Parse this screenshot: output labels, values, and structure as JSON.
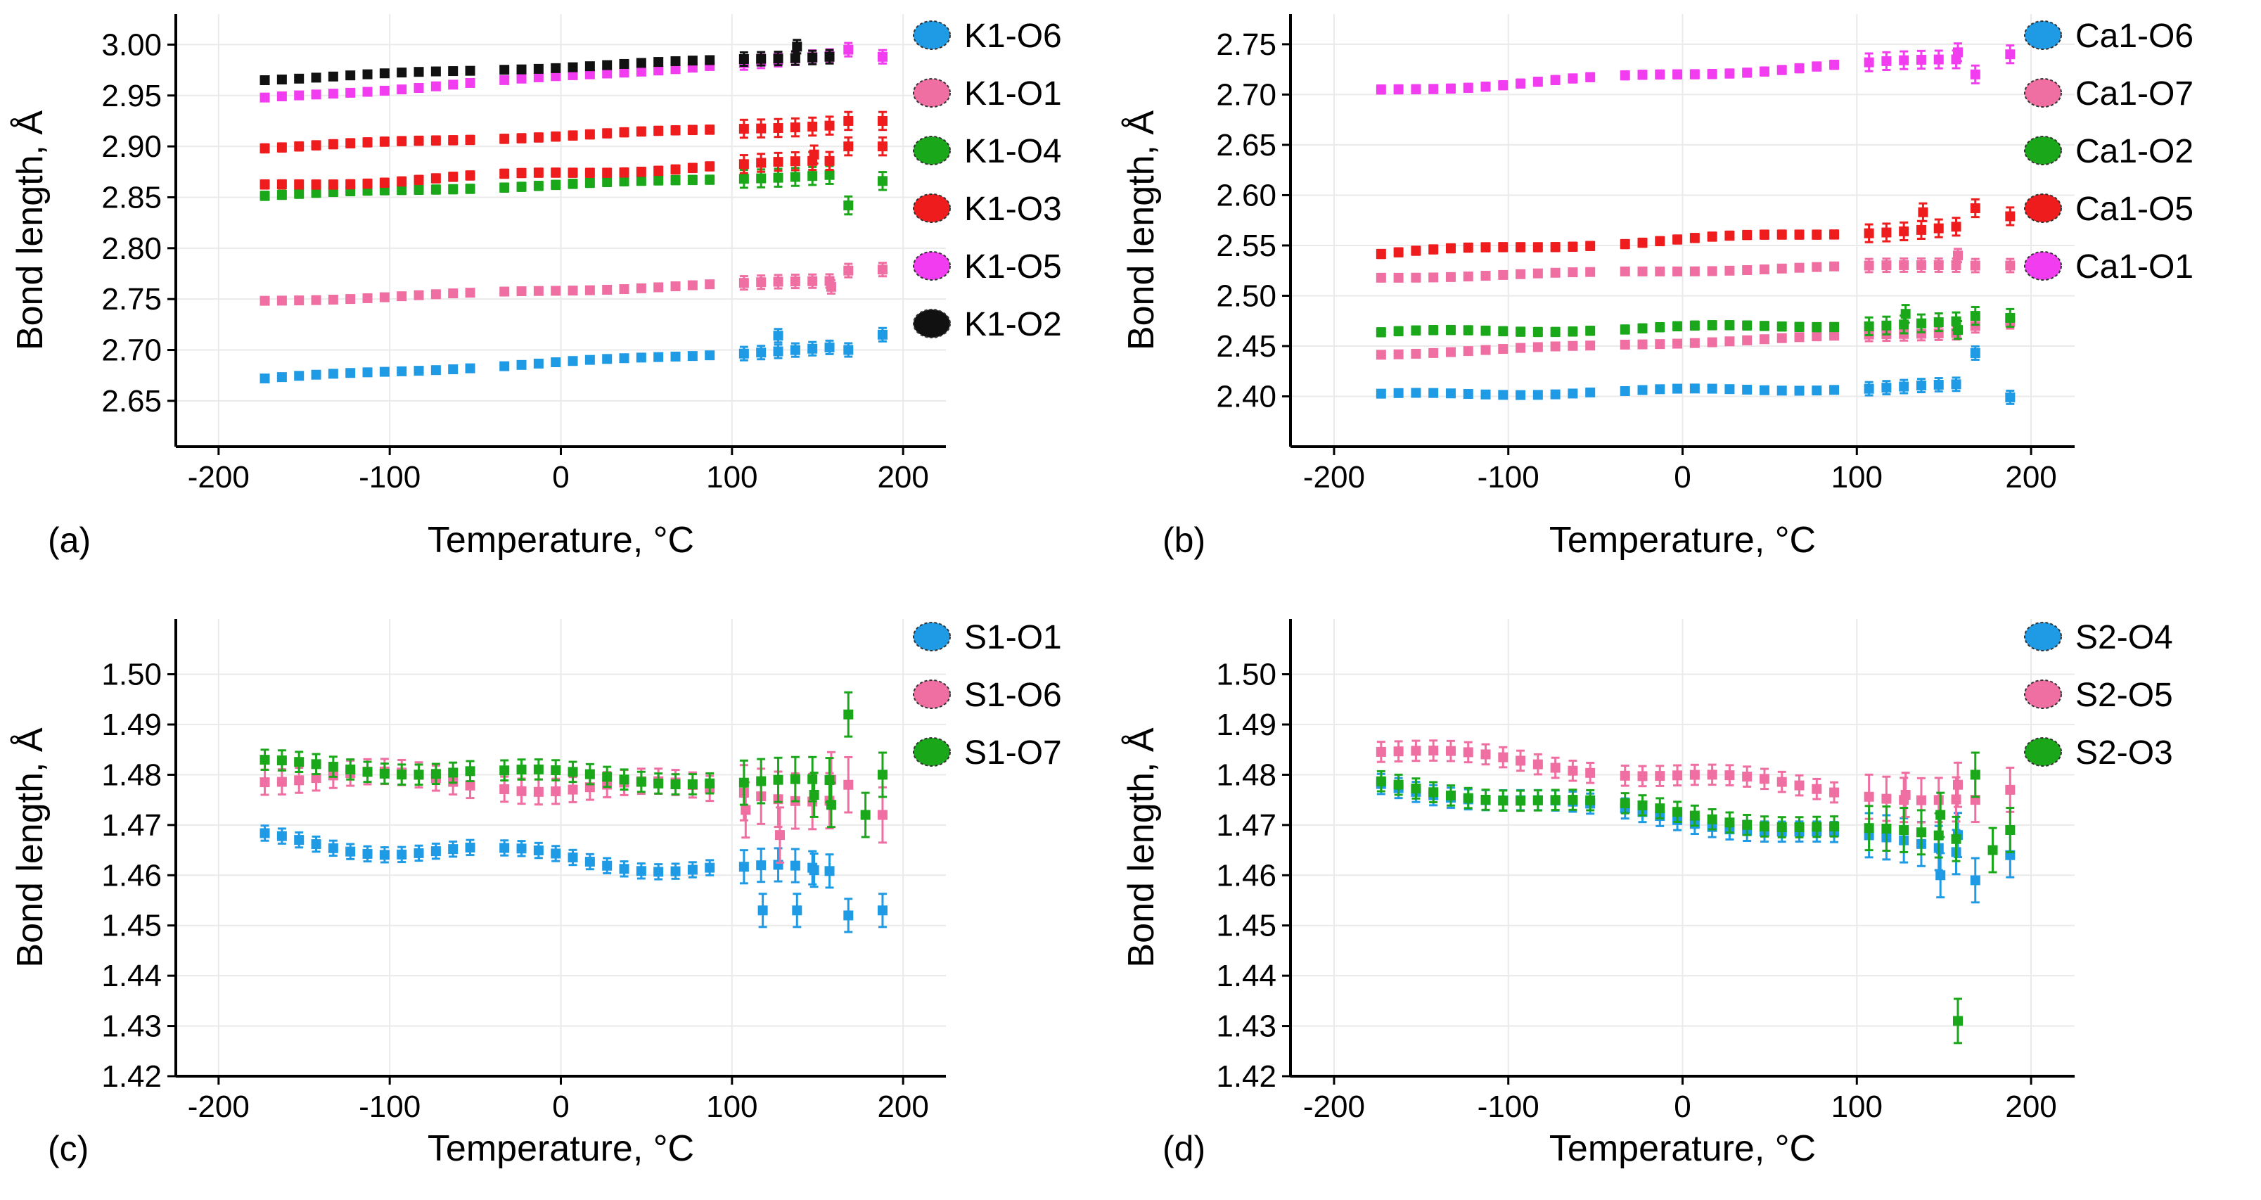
{
  "chart_data": [
    {
      "type": "scatter",
      "panel_label": "(a)",
      "xlabel": "Temperature, °C",
      "ylabel": "Bond length, Å",
      "xlim": [
        -225,
        225
      ],
      "ylim": [
        2.605,
        3.03
      ],
      "xticks": [
        "-200",
        "-100",
        "0",
        "100",
        "200"
      ],
      "xtick_values": [
        -200,
        -100,
        0,
        100,
        200
      ],
      "yticks": [
        "2.65",
        "2.70",
        "2.75",
        "2.80",
        "2.85",
        "2.90",
        "2.95",
        "3.00"
      ],
      "ytick_values": [
        2.65,
        2.7,
        2.75,
        2.8,
        2.85,
        2.9,
        2.95,
        3.0
      ],
      "legend_position": "right",
      "series": [
        {
          "name": "K1-O6",
          "color": "#1f9be6",
          "start": 2.672,
          "end": 2.702,
          "outliers": [
            [
              127,
              2.714
            ],
            [
              168,
              2.7
            ],
            [
              188,
              2.715
            ]
          ],
          "err": 0.003,
          "wiggle": 0.001
        },
        {
          "name": "K1-O1",
          "color": "#ef6fa2",
          "start": 2.748,
          "end": 2.768,
          "outliers": [
            [
              158,
              2.762
            ],
            [
              168,
              2.778
            ],
            [
              188,
              2.779
            ]
          ],
          "err": 0.003,
          "wiggle": 0.001
        },
        {
          "name": "K1-O4",
          "color": "#1aa81a",
          "start": 2.852,
          "end": 2.872,
          "outliers": [
            [
              168,
              2.842
            ],
            [
              188,
              2.866
            ]
          ],
          "err": 0.004,
          "wiggle": 0.001
        },
        {
          "name": "K1-O3",
          "color": "#ee1c1c",
          "start": 2.861,
          "end": 2.885,
          "outliers": [
            [
              148,
              2.892
            ],
            [
              168,
              2.9
            ],
            [
              188,
              2.9
            ]
          ],
          "err": 0.004,
          "wiggle": 0.002
        },
        {
          "name": "K1-O3b",
          "color": "#ee1c1c",
          "legend": false,
          "start": 2.899,
          "end": 2.921,
          "outliers": [
            [
              168,
              2.925
            ],
            [
              188,
              2.925
            ]
          ],
          "err": 0.004,
          "wiggle": 0.001
        },
        {
          "name": "K1-O5",
          "color": "#f23cf0",
          "start": 2.947,
          "end": 2.988,
          "outliers": [
            [
              168,
              2.995
            ],
            [
              188,
              2.988
            ]
          ],
          "err": 0.003,
          "wiggle": 0.001
        },
        {
          "name": "K1-O2",
          "color": "#111111",
          "start": 2.966,
          "end": 2.989,
          "outliers": [
            [
              138,
              2.998
            ]
          ],
          "err": 0.003,
          "wiggle": 0.001
        }
      ]
    },
    {
      "type": "scatter",
      "panel_label": "(b)",
      "xlabel": "Temperature, °C",
      "ylabel": "Bond length, Å",
      "xlim": [
        -225,
        225
      ],
      "ylim": [
        2.35,
        2.78
      ],
      "xticks": [
        "-200",
        "-100",
        "0",
        "100",
        "200"
      ],
      "xtick_values": [
        -200,
        -100,
        0,
        100,
        200
      ],
      "yticks": [
        "2.40",
        "2.45",
        "2.50",
        "2.55",
        "2.60",
        "2.65",
        "2.70",
        "2.75"
      ],
      "ytick_values": [
        2.4,
        2.45,
        2.5,
        2.55,
        2.6,
        2.65,
        2.7,
        2.75
      ],
      "legend_position": "right",
      "series": [
        {
          "name": "Ca1-O6",
          "color": "#1f9be6",
          "start": 2.401,
          "end": 2.41,
          "outliers": [
            [
              168,
              2.443
            ],
            [
              188,
              2.399
            ]
          ],
          "err": 0.003,
          "wiggle": 0.002
        },
        {
          "name": "Ca1-O7",
          "color": "#ef6fa2",
          "start": 2.442,
          "end": 2.464,
          "outliers": [
            [
              168,
              2.47
            ],
            [
              188,
              2.474
            ]
          ],
          "err": 0.003,
          "wiggle": 0.001
        },
        {
          "name": "Ca1-O2",
          "color": "#1aa81a",
          "start": 2.463,
          "end": 2.473,
          "outliers": [
            [
              128,
              2.482
            ],
            [
              158,
              2.466
            ],
            [
              168,
              2.48
            ],
            [
              188,
              2.478
            ]
          ],
          "err": 0.004,
          "wiggle": 0.002
        },
        {
          "name": "Ca1-O7b",
          "color": "#ef6fa2",
          "legend": false,
          "start": 2.518,
          "end": 2.531,
          "outliers": [
            [
              158,
              2.54
            ],
            [
              168,
              2.53
            ],
            [
              188,
              2.53
            ]
          ],
          "err": 0.003,
          "wiggle": 0.001
        },
        {
          "name": "Ca1-O5",
          "color": "#ee1c1c",
          "start": 2.542,
          "end": 2.568,
          "outliers": [
            [
              138,
              2.583
            ],
            [
              168,
              2.587
            ],
            [
              188,
              2.579
            ]
          ],
          "err": 0.004,
          "wiggle": 0.002
        },
        {
          "name": "Ca1-O1",
          "color": "#f23cf0",
          "start": 2.704,
          "end": 2.735,
          "outliers": [
            [
              158,
              2.742
            ],
            [
              168,
              2.72
            ],
            [
              188,
              2.74
            ]
          ],
          "err": 0.004,
          "wiggle": 0.002
        }
      ]
    },
    {
      "type": "scatter",
      "panel_label": "(c)",
      "xlabel": "Temperature, °C",
      "ylabel": "Bond length, Å",
      "xlim": [
        -225,
        225
      ],
      "ylim": [
        1.42,
        1.511
      ],
      "xticks": [
        "-200",
        "-100",
        "0",
        "100",
        "200"
      ],
      "xtick_values": [
        -200,
        -100,
        0,
        100,
        200
      ],
      "yticks": [
        "1.42",
        "1.43",
        "1.44",
        "1.45",
        "1.46",
        "1.47",
        "1.48",
        "1.49",
        "1.50"
      ],
      "ytick_values": [
        1.42,
        1.43,
        1.44,
        1.45,
        1.46,
        1.47,
        1.48,
        1.49,
        1.5
      ],
      "legend_position": "top-right",
      "series": [
        {
          "name": "S1-O1",
          "color": "#1f9be6",
          "start": 1.467,
          "end": 1.46,
          "outliers": [
            [
              118,
              1.453
            ],
            [
              138,
              1.453
            ],
            [
              148,
              1.461
            ],
            [
              168,
              1.452
            ],
            [
              188,
              1.453
            ]
          ],
          "err": 0.0015,
          "wiggle": 0.0015
        },
        {
          "name": "S1-O6",
          "color": "#ef6fa2",
          "start": 1.48,
          "end": 1.476,
          "outliers": [
            [
              108,
              1.473
            ],
            [
              128,
              1.468
            ],
            [
              158,
              1.479
            ],
            [
              168,
              1.478
            ],
            [
              188,
              1.472
            ]
          ],
          "err": 0.0025,
          "wiggle": 0.0015
        },
        {
          "name": "S1-O7",
          "color": "#1aa81a",
          "start": 1.482,
          "end": 1.478,
          "outliers": [
            [
              148,
              1.476
            ],
            [
              158,
              1.474
            ],
            [
              168,
              1.492
            ],
            [
              178,
              1.472
            ],
            [
              188,
              1.48
            ]
          ],
          "err": 0.002,
          "wiggle": 0.001
        }
      ]
    },
    {
      "type": "scatter",
      "panel_label": "(d)",
      "xlabel": "Temperature, °C",
      "ylabel": "Bond length, Å",
      "xlim": [
        -225,
        225
      ],
      "ylim": [
        1.42,
        1.511
      ],
      "xticks": [
        "-200",
        "-100",
        "0",
        "100",
        "200"
      ],
      "xtick_values": [
        -200,
        -100,
        0,
        100,
        200
      ],
      "yticks": [
        "1.42",
        "1.43",
        "1.44",
        "1.45",
        "1.46",
        "1.47",
        "1.48",
        "1.49",
        "1.50"
      ],
      "ytick_values": [
        1.42,
        1.43,
        1.44,
        1.45,
        1.46,
        1.47,
        1.48,
        1.49,
        1.5
      ],
      "legend_position": "top-right",
      "series": [
        {
          "name": "S2-O4",
          "color": "#1f9be6",
          "start": 1.478,
          "end": 1.465,
          "outliers": [
            [
              148,
              1.46
            ],
            [
              158,
              1.468
            ],
            [
              168,
              1.459
            ],
            [
              188,
              1.464
            ]
          ],
          "err": 0.002,
          "wiggle": 0.001
        },
        {
          "name": "S2-O5",
          "color": "#ef6fa2",
          "start": 1.485,
          "end": 1.475,
          "outliers": [
            [
              128,
              1.476
            ],
            [
              158,
              1.478
            ],
            [
              168,
              1.475
            ],
            [
              188,
              1.477
            ]
          ],
          "err": 0.002,
          "wiggle": 0.001
        },
        {
          "name": "S2-O3",
          "color": "#1aa81a",
          "start": 1.478,
          "end": 1.467,
          "outliers": [
            [
              148,
              1.472
            ],
            [
              158,
              1.431
            ],
            [
              168,
              1.48
            ],
            [
              178,
              1.465
            ],
            [
              188,
              1.469
            ]
          ],
          "err": 0.002,
          "wiggle": 0.001
        }
      ]
    }
  ]
}
